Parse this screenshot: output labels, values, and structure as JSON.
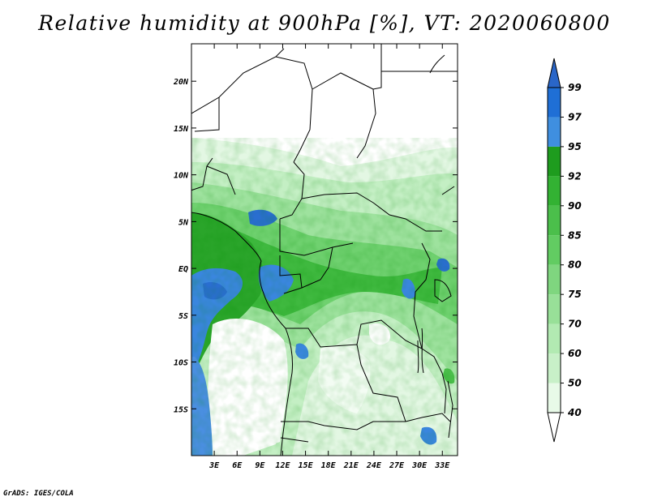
{
  "title": "Relative humidity at 900hPa [%], VT: 2020060800",
  "credit": "GrADS: IGES/COLA",
  "map": {
    "lon_range": [
      0,
      35
    ],
    "lat_range": [
      -20,
      24
    ],
    "lat_ticks": [
      {
        "value": 20,
        "label": "20N"
      },
      {
        "value": 15,
        "label": "15N"
      },
      {
        "value": 10,
        "label": "10N"
      },
      {
        "value": 5,
        "label": "5N"
      },
      {
        "value": 0,
        "label": "EQ"
      },
      {
        "value": -5,
        "label": "5S"
      },
      {
        "value": -10,
        "label": "10S"
      },
      {
        "value": -15,
        "label": "15S"
      }
    ],
    "lon_ticks": [
      {
        "value": 3,
        "label": "3E"
      },
      {
        "value": 6,
        "label": "6E"
      },
      {
        "value": 9,
        "label": "9E"
      },
      {
        "value": 12,
        "label": "12E"
      },
      {
        "value": 15,
        "label": "15E"
      },
      {
        "value": 18,
        "label": "18E"
      },
      {
        "value": 21,
        "label": "21E"
      },
      {
        "value": 24,
        "label": "24E"
      },
      {
        "value": 27,
        "label": "27E"
      },
      {
        "value": 30,
        "label": "30E"
      },
      {
        "value": 33,
        "label": "33E"
      }
    ]
  },
  "colorbar": {
    "levels": [
      40,
      50,
      60,
      70,
      75,
      80,
      85,
      90,
      92,
      95,
      97,
      99
    ],
    "level_labels": [
      "40",
      "50",
      "60",
      "70",
      "75",
      "80",
      "85",
      "90",
      "92",
      "95",
      "97",
      "99"
    ],
    "colors": [
      "#e8fae8",
      "#c8f0c8",
      "#b2eab2",
      "#98e098",
      "#7fd67f",
      "#62cc62",
      "#4bbf4b",
      "#33b233",
      "#1e9c1e",
      "#3f8fe0",
      "#1f6fd6",
      "#1a5fc8"
    ],
    "below_color": "#ffffff",
    "above_color": "#2a66c8"
  }
}
